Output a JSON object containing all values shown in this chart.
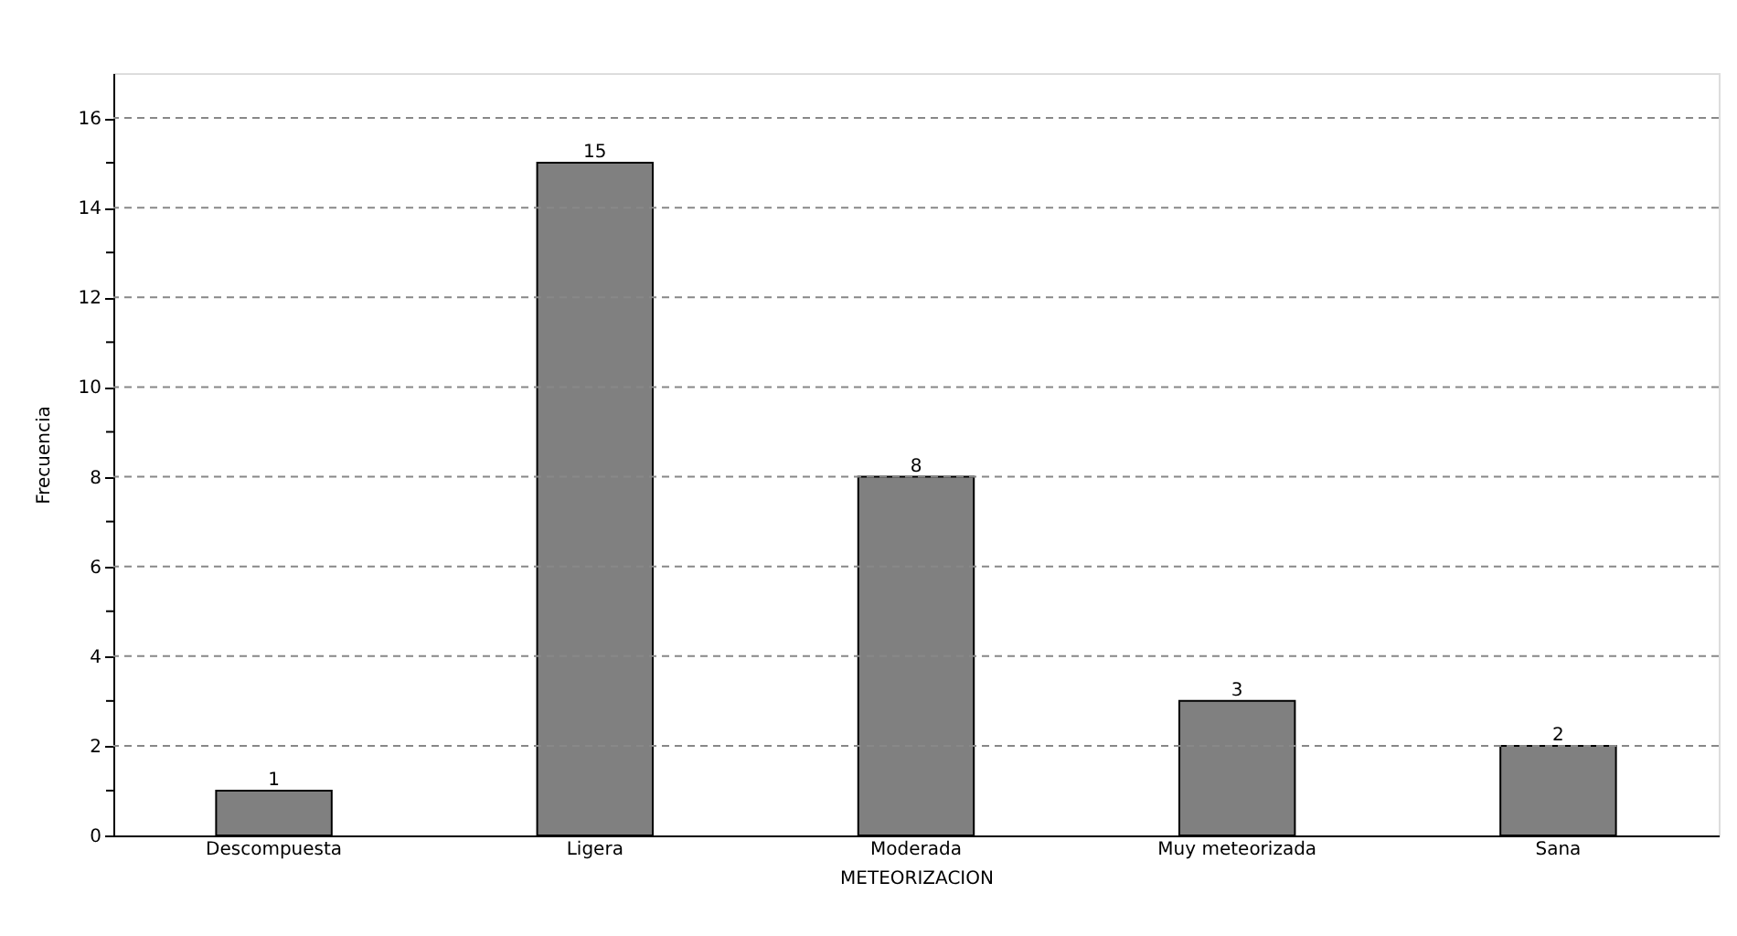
{
  "chart_data": {
    "type": "bar",
    "xlabel": "METEORIZACION",
    "ylabel": "Frecuencia",
    "categories": [
      "Descompuesta",
      "Ligera",
      "Moderada",
      "Muy meteorizada",
      "Sana"
    ],
    "values": [
      1,
      15,
      8,
      3,
      2
    ],
    "color": "#808080",
    "data_labels": true,
    "ylim": [
      0,
      17
    ],
    "yticks": [
      0,
      {
        "value": 1,
        "label": null
      },
      2,
      {
        "value": 3,
        "label": null
      },
      4,
      {
        "value": 5,
        "label": null
      },
      6,
      {
        "value": 7,
        "label": null
      },
      8,
      {
        "value": 9,
        "label": null
      },
      10,
      {
        "value": 11,
        "label": null
      },
      12,
      {
        "value": 13,
        "label": null
      },
      14,
      {
        "value": 15,
        "label": null
      },
      16
    ],
    "grid": "y"
  }
}
